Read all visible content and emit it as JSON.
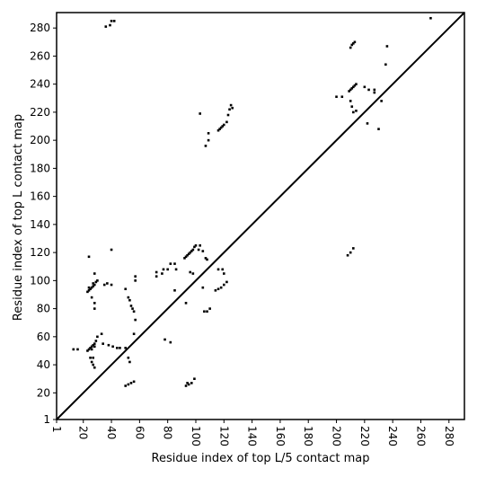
{
  "chart_data": {
    "type": "scatter",
    "x_label": "Residue index of top L/5 contact map",
    "y_label": "Residue index of top L contact map",
    "xlim": [
      1,
      291
    ],
    "ylim": [
      1,
      291
    ],
    "xticks": [
      1,
      20,
      40,
      60,
      80,
      100,
      120,
      140,
      160,
      180,
      200,
      220,
      240,
      260,
      280
    ],
    "yticks": [
      1,
      20,
      40,
      60,
      80,
      100,
      120,
      140,
      160,
      180,
      200,
      220,
      240,
      260,
      280
    ],
    "grid": false,
    "series": [
      {
        "color": "#000000",
        "x": [
          23,
          24,
          25,
          26,
          27,
          28,
          29,
          30,
          24,
          27,
          23,
          24,
          25,
          26,
          27,
          28,
          29,
          26,
          28,
          27,
          27,
          28,
          26,
          25,
          24,
          28,
          28,
          28,
          26,
          34,
          38,
          41,
          44,
          46,
          33,
          30,
          35,
          37,
          40,
          40,
          50,
          52,
          53,
          54,
          55,
          56,
          57,
          56,
          57,
          57,
          50,
          52,
          54,
          56,
          53,
          52,
          50,
          13,
          16,
          36,
          39,
          40,
          42,
          72,
          72,
          76,
          77,
          80,
          82,
          85,
          86,
          78,
          82,
          85,
          92,
          93,
          94,
          95,
          96,
          97,
          98,
          99,
          100,
          93,
          96,
          98,
          93,
          95,
          97,
          99,
          94,
          102,
          103,
          105,
          107,
          108,
          105,
          106,
          108,
          110,
          114,
          116,
          118,
          120,
          122,
          116,
          119,
          120,
          103,
          107,
          109,
          109,
          116,
          117,
          118,
          119,
          120,
          122,
          123,
          124,
          125,
          126,
          200,
          204,
          208,
          210,
          212,
          209,
          210,
          211,
          212,
          213,
          214,
          210,
          211,
          212,
          214,
          220,
          223,
          227,
          227,
          222,
          230,
          232,
          210,
          211,
          212,
          213,
          236,
          235,
          267
        ],
        "values": [
          92,
          93,
          94,
          95,
          96,
          97,
          99,
          100,
          95,
          98,
          50,
          51,
          52,
          53,
          54,
          55,
          57,
          51,
          53,
          45,
          40,
          38,
          42,
          45,
          117,
          80,
          84,
          105,
          88,
          55,
          54,
          53,
          52,
          52,
          62,
          60,
          97,
          98,
          97,
          122,
          94,
          88,
          86,
          82,
          80,
          78,
          72,
          62,
          100,
          103,
          25,
          26,
          27,
          28,
          42,
          45,
          52,
          51,
          51,
          281,
          282,
          285,
          285,
          103,
          106,
          105,
          108,
          108,
          112,
          112,
          108,
          58,
          56,
          93,
          116,
          117,
          118,
          119,
          120,
          121,
          122,
          124,
          125,
          84,
          106,
          105,
          25,
          26,
          27,
          30,
          27,
          122,
          125,
          121,
          116,
          115,
          95,
          78,
          78,
          80,
          93,
          94,
          95,
          97,
          99,
          108,
          108,
          105,
          219,
          196,
          200,
          205,
          207,
          208,
          209,
          210,
          211,
          213,
          218,
          222,
          225,
          223,
          231,
          231,
          118,
          120,
          123,
          235,
          236,
          237,
          238,
          239,
          240,
          228,
          224,
          220,
          221,
          238,
          236,
          236,
          234,
          212,
          208,
          228,
          266,
          268,
          269,
          270,
          267,
          254,
          287
        ]
      }
    ]
  }
}
